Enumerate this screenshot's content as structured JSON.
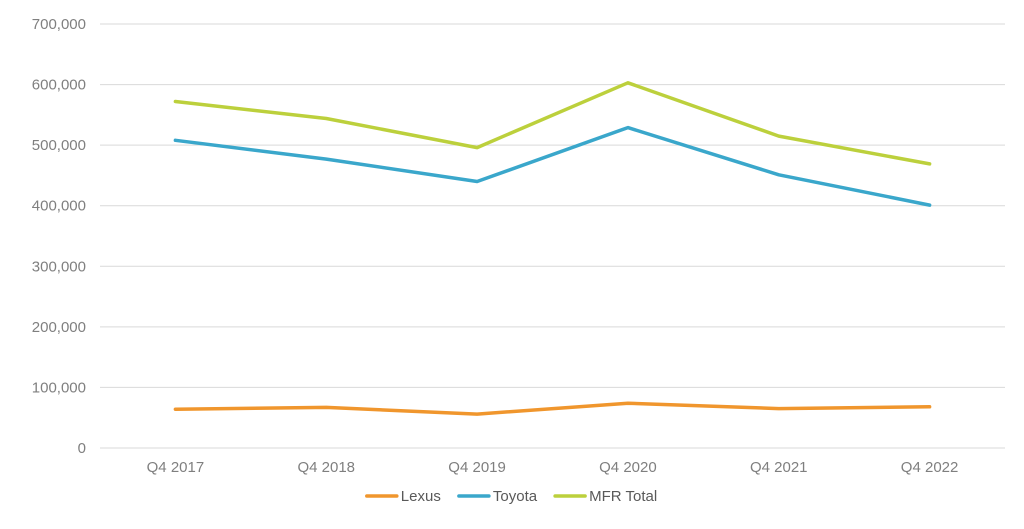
{
  "chart_data": {
    "type": "line",
    "title": "",
    "xlabel": "",
    "ylabel": "",
    "categories": [
      "Q4 2017",
      "Q4 2018",
      "Q4 2019",
      "Q4 2020",
      "Q4 2021",
      "Q4 2022"
    ],
    "ylim": [
      0,
      700000
    ],
    "yticks": [
      0,
      100000,
      200000,
      300000,
      400000,
      500000,
      600000,
      700000
    ],
    "ytick_labels": [
      "0",
      "100,000",
      "200,000",
      "300,000",
      "400,000",
      "500,000",
      "600,000",
      "700,000"
    ],
    "grid": true,
    "legend_position": "bottom",
    "series": [
      {
        "name": "Lexus",
        "color": "#f0962d",
        "values": [
          64000,
          67000,
          56000,
          74000,
          65000,
          68000
        ]
      },
      {
        "name": "Toyota",
        "color": "#3aa7cb",
        "values": [
          508000,
          477000,
          440000,
          529000,
          451000,
          401000
        ]
      },
      {
        "name": "MFR Total",
        "color": "#bcd03c",
        "values": [
          572000,
          544000,
          496000,
          603000,
          515000,
          469000
        ]
      }
    ]
  }
}
